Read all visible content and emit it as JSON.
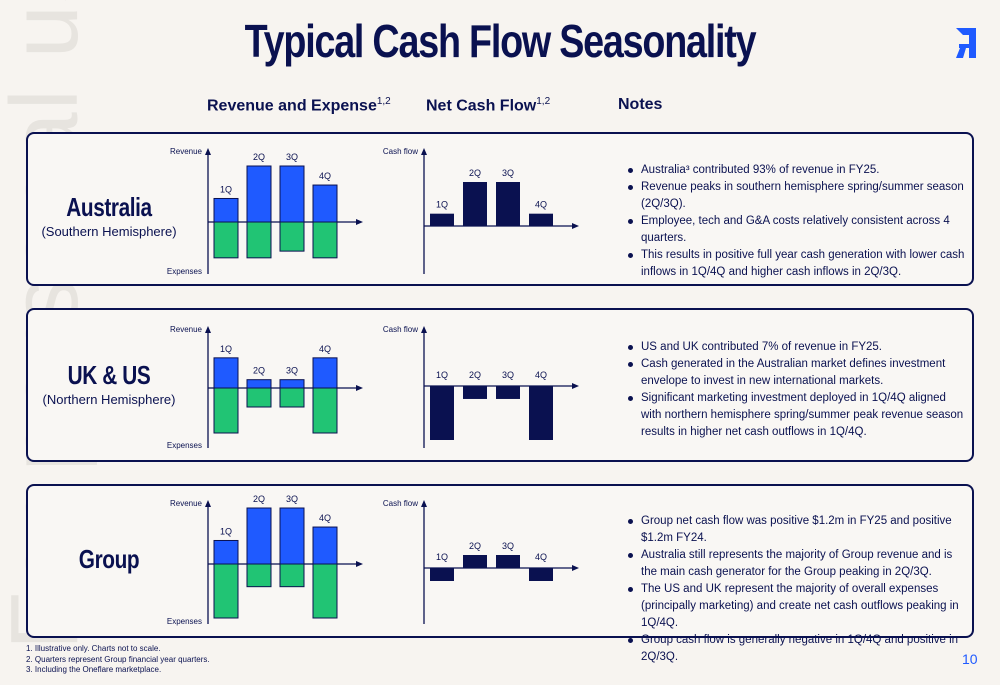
{
  "title": "Typical Cash Flow Seasonality",
  "watermark": "For personal use only",
  "headers": {
    "revenue_expense": "Revenue and Expense",
    "revenue_expense_sup": "1,2",
    "net_cash_flow": "Net Cash Flow",
    "net_cash_flow_sup": "1,2",
    "notes": "Notes"
  },
  "colors": {
    "navy": "#0a1150",
    "revenue_blue": "#1f5aff",
    "expense_green": "#21c474",
    "cash_navy": "#0a1150"
  },
  "axis_labels": {
    "revenue": "Revenue",
    "expenses": "Expenses",
    "cash_flow": "Cash flow"
  },
  "quarters": [
    "1Q",
    "2Q",
    "3Q",
    "4Q"
  ],
  "regions": [
    {
      "name": "Australia",
      "subtitle": "(Southern Hemisphere)",
      "notes": [
        "Australia³ contributed 93% of revenue in FY25.",
        "Revenue peaks in southern hemisphere spring/summer season (2Q/3Q).",
        "Employee, tech and G&A costs relatively consistent across 4 quarters.",
        "This results in positive full year cash generation with lower cash inflows in 1Q/4Q and higher cash inflows in 2Q/3Q."
      ]
    },
    {
      "name": "UK & US",
      "subtitle": "(Northern Hemisphere)",
      "notes": [
        "US and UK contributed 7% of revenue in FY25.",
        "Cash generated in the Australian market defines investment envelope to invest in new international markets.",
        "Significant marketing investment deployed in 1Q/4Q  aligned with northern hemisphere spring/summer peak revenue season results in higher net cash outflows in 1Q/4Q."
      ]
    },
    {
      "name": "Group",
      "subtitle": "",
      "notes": [
        "Group net cash flow was positive $1.2m in FY25 and positive $1.2m FY24.",
        "Australia still represents the majority of Group revenue and is the main cash generator for the Group peaking in 2Q/3Q.",
        "The US and UK represent the majority of overall expenses (principally marketing) and create net cash outflows peaking in 1Q/4Q.",
        "Group cash flow is generally negative in 1Q/4Q and positive in 2Q/3Q."
      ]
    }
  ],
  "chart_data": [
    {
      "type": "bar",
      "title": "Australia – Revenue and Expense",
      "categories": [
        "1Q",
        "2Q",
        "3Q",
        "4Q"
      ],
      "series": [
        {
          "name": "Revenue",
          "values": [
            0.42,
            1.0,
            1.0,
            0.66
          ]
        },
        {
          "name": "Expenses",
          "values": [
            -0.64,
            -0.64,
            -0.52,
            -0.64
          ]
        }
      ],
      "ylabel_top": "Revenue",
      "ylabel_bottom": "Expenses"
    },
    {
      "type": "bar",
      "title": "Australia – Net Cash Flow",
      "categories": [
        "1Q",
        "2Q",
        "3Q",
        "4Q"
      ],
      "series": [
        {
          "name": "Cash flow",
          "values": [
            0.28,
            1.0,
            1.0,
            0.28
          ]
        }
      ],
      "ylabel_top": "Cash flow"
    },
    {
      "type": "bar",
      "title": "UK & US – Revenue and Expense",
      "categories": [
        "1Q",
        "2Q",
        "3Q",
        "4Q"
      ],
      "series": [
        {
          "name": "Revenue",
          "values": [
            0.58,
            0.16,
            0.16,
            0.58
          ]
        },
        {
          "name": "Expenses",
          "values": [
            -0.9,
            -0.38,
            -0.38,
            -0.9
          ]
        }
      ],
      "ylabel_top": "Revenue",
      "ylabel_bottom": "Expenses"
    },
    {
      "type": "bar",
      "title": "UK & US – Net Cash Flow",
      "categories": [
        "1Q",
        "2Q",
        "3Q",
        "4Q"
      ],
      "series": [
        {
          "name": "Cash flow",
          "values": [
            -1.0,
            -0.24,
            -0.24,
            -1.0
          ]
        }
      ],
      "ylabel_top": "Cash flow"
    },
    {
      "type": "bar",
      "title": "Group – Revenue and Expense",
      "categories": [
        "1Q",
        "2Q",
        "3Q",
        "4Q"
      ],
      "series": [
        {
          "name": "Revenue",
          "values": [
            0.42,
            1.0,
            1.0,
            0.66
          ]
        },
        {
          "name": "Expenses",
          "values": [
            -1.0,
            -0.42,
            -0.42,
            -1.0
          ]
        }
      ],
      "ylabel_top": "Revenue",
      "ylabel_bottom": "Expenses"
    },
    {
      "type": "bar",
      "title": "Group – Net Cash Flow",
      "categories": [
        "1Q",
        "2Q",
        "3Q",
        "4Q"
      ],
      "series": [
        {
          "name": "Cash flow",
          "values": [
            -0.5,
            0.5,
            0.5,
            -0.5
          ]
        }
      ],
      "ylabel_top": "Cash flow"
    }
  ],
  "footnotes": [
    "1.  Illustrative only. Charts not to scale.",
    "2.  Quarters represent Group financial year quarters.",
    "3.  Including the Oneflare marketplace."
  ],
  "page_number": "10"
}
